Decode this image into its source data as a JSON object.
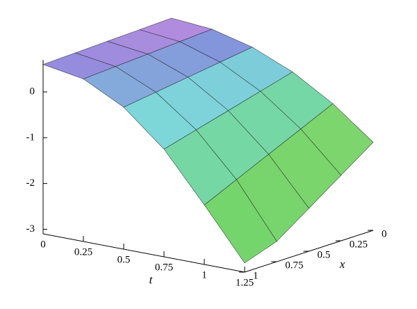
{
  "chart_data": {
    "type": "surface",
    "x_label": "x",
    "t_label": "t",
    "x": [
      0,
      0.25,
      0.5,
      0.75,
      1
    ],
    "t": [
      0,
      0.25,
      0.5,
      0.75,
      1,
      1.25
    ],
    "z": [
      [
        0.7,
        0.625,
        0.4,
        0.025,
        -0.5,
        -1.175
      ],
      [
        0.675,
        0.581,
        0.3,
        -0.169,
        -0.825,
        -1.669
      ],
      [
        0.65,
        0.538,
        0.2,
        -0.363,
        -1.15,
        -2.163
      ],
      [
        0.625,
        0.494,
        0.1,
        -0.556,
        -1.475,
        -2.656
      ],
      [
        0.6,
        0.45,
        0,
        -0.75,
        -1.8,
        -2.9
      ]
    ],
    "xlim": [
      0,
      1
    ],
    "xticks": [
      0,
      0.25,
      0.5,
      0.75,
      1
    ],
    "tlim": [
      0,
      1.25
    ],
    "tticks": [
      0,
      0.25,
      0.5,
      0.75,
      1,
      1.25
    ],
    "zlim": [
      -3.1,
      0.7
    ],
    "zticks": [
      -3,
      -2,
      -1,
      0
    ]
  }
}
